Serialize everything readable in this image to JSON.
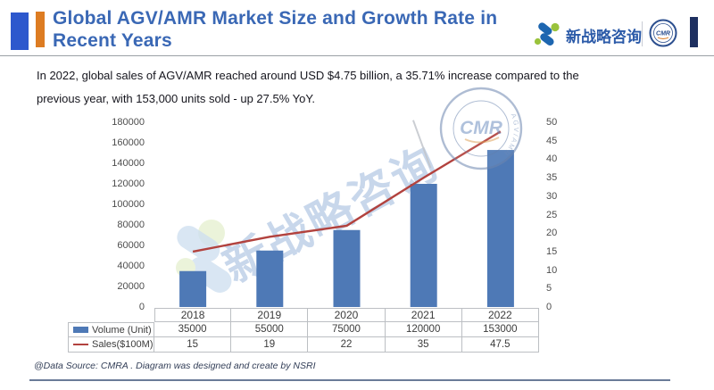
{
  "header": {
    "title_line1": "Global AGV/AMR Market Size and Growth Rate in",
    "title_line2": "Recent Years",
    "title_color": "#3a68b5",
    "accent_blue": "#2d58cd",
    "accent_orange": "#dd7c22",
    "brand": {
      "name": "新战略咨询",
      "badge_text": "CMR"
    }
  },
  "intro": {
    "line1": "In 2022, global sales of AGV/AMR reached around USD $4.75 billion, a 35.71% increase compared to the",
    "line2": "previous year, with 153,000 units sold - up 27.5% YoY."
  },
  "chart_data": {
    "type": "bar",
    "categories": [
      "2018",
      "2019",
      "2020",
      "2021",
      "2022"
    ],
    "series": [
      {
        "name": "Volume (Unit)",
        "type": "bar",
        "axis": "left",
        "color": "#4e79b6",
        "values": [
          35000,
          55000,
          75000,
          120000,
          153000
        ]
      },
      {
        "name": "Sales($100M)",
        "type": "line",
        "axis": "right",
        "color": "#b2423e",
        "values": [
          15,
          19,
          22,
          35,
          47.5
        ]
      }
    ],
    "left_axis": {
      "min": 0,
      "max": 180000,
      "step": 20000
    },
    "right_axis": {
      "min": 0,
      "max": 50,
      "step": 5
    },
    "grid": false,
    "legend_position": "table-left"
  },
  "watermark": {
    "text": "新战略咨询",
    "stamp_text": "CMR",
    "stamp_ring_text": "AGV/AMR"
  },
  "footer": {
    "source": "@Data Source:  CMRA . Diagram was designed and create by NSRI"
  }
}
